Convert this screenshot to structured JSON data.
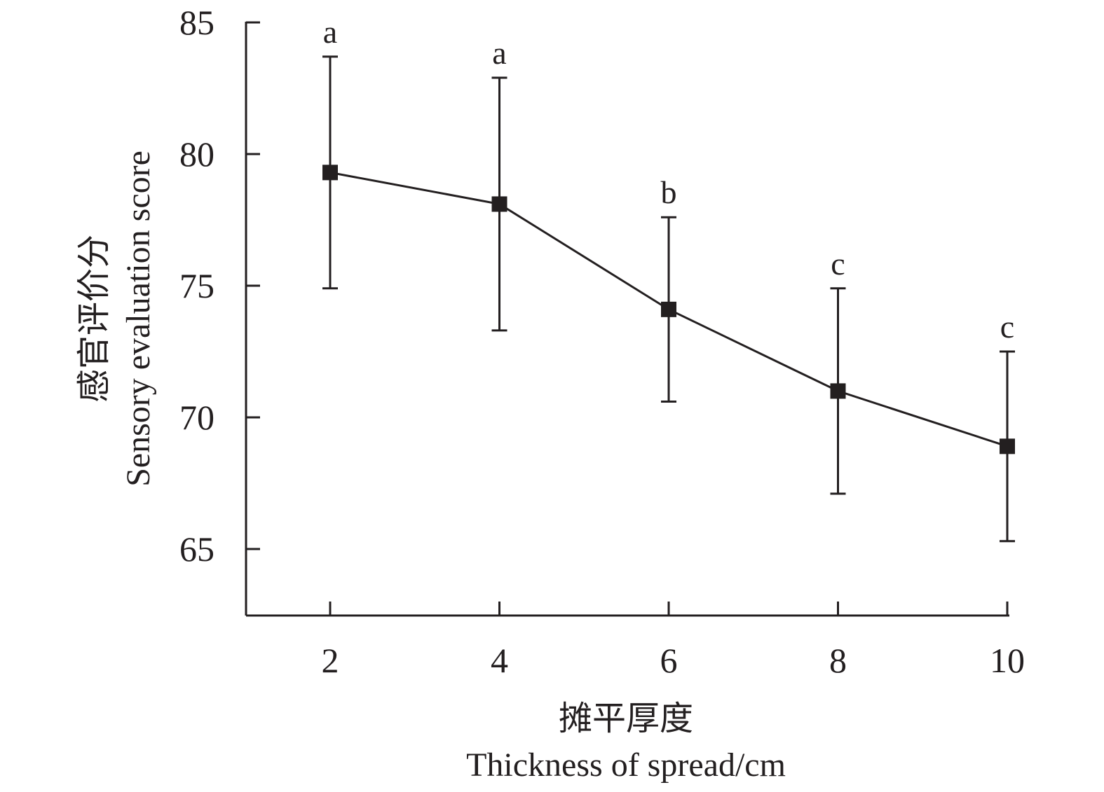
{
  "chart_data": {
    "type": "line",
    "x": [
      2,
      4,
      6,
      8,
      10
    ],
    "y": [
      79.3,
      78.1,
      74.1,
      71.0,
      68.9
    ],
    "error": [
      4.4,
      4.8,
      3.5,
      3.9,
      3.6
    ],
    "significance": [
      "a",
      "a",
      "b",
      "c",
      "c"
    ],
    "xticks": [
      "2",
      "4",
      "6",
      "8",
      "10"
    ],
    "yticks": [
      "65",
      "70",
      "75",
      "80",
      "85"
    ],
    "ylim": [
      62.5,
      85
    ],
    "xlim": [
      1,
      10
    ],
    "xlabel_cn": "摊平厚度",
    "xlabel_en": "Thickness of spread/cm",
    "ylabel_cn": "感官评价分",
    "ylabel_en": "Sensory evaluation score",
    "marker": "square",
    "color": "#231f20",
    "grid": false,
    "legend": false
  }
}
